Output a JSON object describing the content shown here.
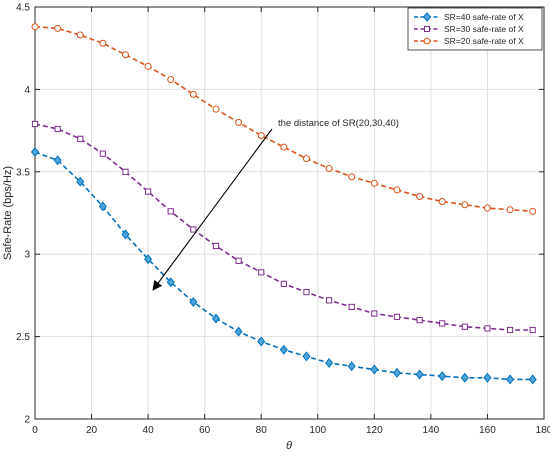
{
  "chart_data": {
    "type": "line",
    "xlabel": "θ",
    "ylabel": "Safe-Rate (bps/Hz)",
    "xlim": [
      0,
      180
    ],
    "ylim": [
      2,
      4.5
    ],
    "xticks": [
      0,
      20,
      40,
      60,
      80,
      100,
      120,
      140,
      160,
      180
    ],
    "yticks": [
      2,
      2.5,
      3,
      3.5,
      4,
      4.5
    ],
    "xtick_labels": [
      "0",
      "20",
      "40",
      "60",
      "80",
      "100",
      "120",
      "140",
      "160",
      "180"
    ],
    "ytick_labels": [
      "2",
      "2.5",
      "3",
      "3.5",
      "4",
      "4.5"
    ],
    "grid": true,
    "legend_position": "top-right",
    "x": [
      0,
      8,
      16,
      24,
      32,
      40,
      48,
      56,
      64,
      72,
      80,
      88,
      96,
      104,
      112,
      120,
      128,
      136,
      144,
      152,
      160,
      168,
      176
    ],
    "series": [
      {
        "name": "SR=40 safe-rate of X",
        "color": "#0072BD",
        "marker": "diamond",
        "values": [
          3.62,
          3.57,
          3.44,
          3.29,
          3.12,
          2.97,
          2.83,
          2.71,
          2.61,
          2.53,
          2.47,
          2.42,
          2.38,
          2.34,
          2.32,
          2.3,
          2.28,
          2.27,
          2.26,
          2.25,
          2.25,
          2.24,
          2.24
        ]
      },
      {
        "name": "SR=30 safe-rate of X",
        "color": "#7E2F8E",
        "marker": "square",
        "values": [
          3.79,
          3.76,
          3.7,
          3.61,
          3.5,
          3.38,
          3.26,
          3.15,
          3.05,
          2.96,
          2.89,
          2.82,
          2.77,
          2.72,
          2.68,
          2.64,
          2.62,
          2.6,
          2.58,
          2.56,
          2.55,
          2.54,
          2.54
        ]
      },
      {
        "name": "SR=20 safe-rate of X",
        "color": "#D95319",
        "marker": "circle",
        "values": [
          4.38,
          4.37,
          4.33,
          4.28,
          4.21,
          4.14,
          4.06,
          3.97,
          3.88,
          3.8,
          3.72,
          3.65,
          3.58,
          3.52,
          3.47,
          3.43,
          3.39,
          3.35,
          3.32,
          3.3,
          3.28,
          3.27,
          3.26
        ]
      }
    ],
    "annotations": [
      {
        "text": "the distance of SR(20,30,40)"
      }
    ]
  }
}
